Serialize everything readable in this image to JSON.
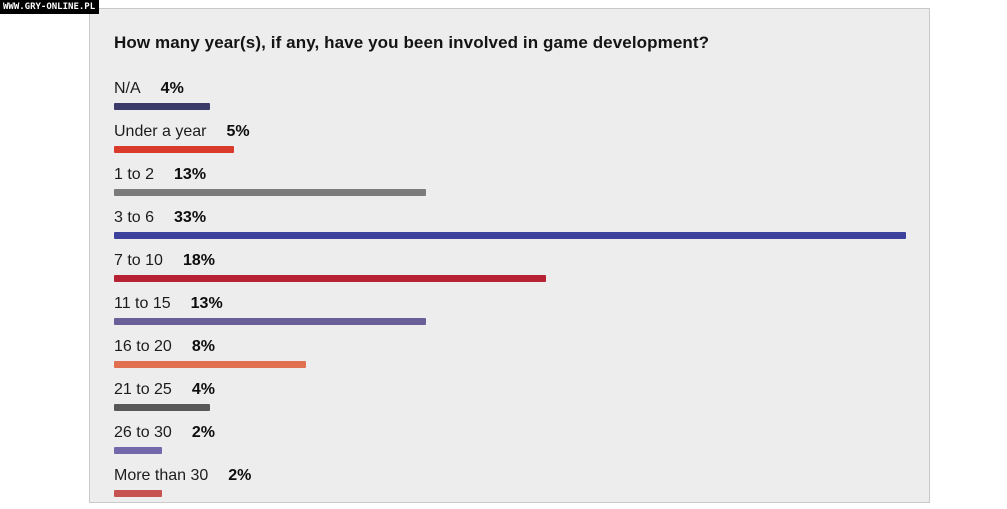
{
  "watermark": {
    "text": "WWW.GRY-ONLINE.PL"
  },
  "chart_data": {
    "type": "bar",
    "orientation": "horizontal",
    "title": "How many year(s), if any, have you been involved in game development?",
    "unit": "%",
    "xlim": [
      0,
      34
    ],
    "grid": false,
    "legend": "none",
    "categories": [
      "N/A",
      "Under a year",
      "1 to 2",
      "3 to 6",
      "7 to 10",
      "11 to 15",
      "16 to 20",
      "21 to 25",
      "26 to 30",
      "More than 30"
    ],
    "values": [
      4,
      5,
      13,
      33,
      18,
      13,
      8,
      4,
      2,
      2
    ],
    "rows": [
      {
        "label": "N/A",
        "value": 4,
        "display": "4%",
        "color": "#3b3a69"
      },
      {
        "label": "Under a year",
        "value": 5,
        "display": "5%",
        "color": "#d93a29"
      },
      {
        "label": "1 to 2",
        "value": 13,
        "display": "13%",
        "color": "#7b7b7b"
      },
      {
        "label": "3 to 6",
        "value": 33,
        "display": "33%",
        "color": "#3c429c"
      },
      {
        "label": "7 to 10",
        "value": 18,
        "display": "18%",
        "color": "#b62133"
      },
      {
        "label": "11 to 15",
        "value": 13,
        "display": "13%",
        "color": "#6a5f99"
      },
      {
        "label": "16 to 20",
        "value": 8,
        "display": "8%",
        "color": "#e0704f"
      },
      {
        "label": "21 to 25",
        "value": 4,
        "display": "4%",
        "color": "#585858"
      },
      {
        "label": "26 to 30",
        "value": 2,
        "display": "2%",
        "color": "#7468ad"
      },
      {
        "label": "More than 30",
        "value": 2,
        "display": "2%",
        "color": "#c75350"
      }
    ]
  }
}
